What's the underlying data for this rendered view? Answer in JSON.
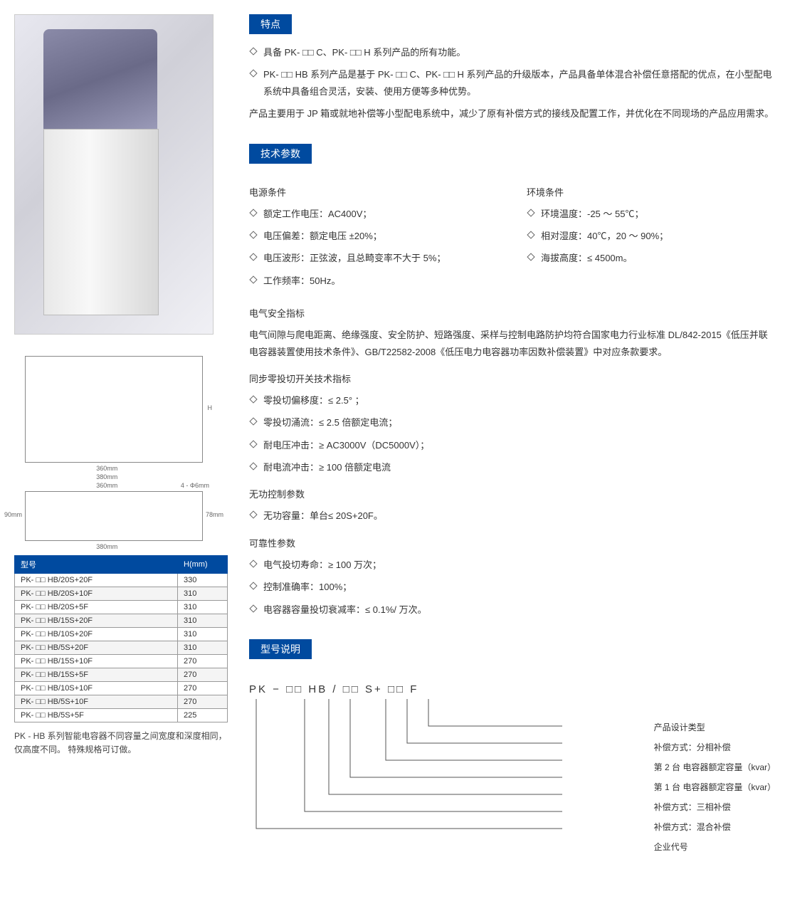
{
  "features": {
    "header": "特点",
    "bullets": [
      "具备 PK- □□ C、PK- □□ H 系列产品的所有功能。",
      "PK- □□ HB 系列产品是基于 PK- □□ C、PK- □□ H 系列产品的升级版本，产品具备单体混合补偿任意搭配的优点，在小型配电系统中具备组合灵活，安装、使用方便等多种优势。"
    ],
    "para": "产品主要用于 JP 箱或就地补偿等小型配电系统中，减少了原有补偿方式的接线及配置工作，并优化在不同现场的产品应用需求。"
  },
  "tech": {
    "header": "技术参数",
    "power": {
      "title": "电源条件",
      "items": [
        "额定工作电压：AC400V；",
        "电压偏差：额定电压 ±20%；",
        "电压波形：正弦波，且总畸变率不大于 5%；",
        "工作频率：50Hz。"
      ]
    },
    "env": {
      "title": "环境条件",
      "items": [
        "环境温度：-25 ～ 55℃；",
        "相对湿度：40℃，20 ～ 90%；",
        "海拔高度：≤ 4500m。"
      ]
    },
    "safety": {
      "title": "电气安全指标",
      "para": "电气间隙与爬电距离、绝缘强度、安全防护、短路强度、采样与控制电路防护均符合国家电力行业标准 DL/842-2015《低压并联电容器装置使用技术条件》、GB/T22582-2008《低压电力电容器功率因数补偿装置》中对应条款要求。"
    },
    "sync": {
      "title": "同步零投切开关技术指标",
      "items": [
        "零投切偏移度：≤ 2.5° ；",
        "零投切涌流：≤ 2.5 倍额定电流；",
        "耐电压冲击：≥ AC3000V（DC5000V）；",
        "耐电流冲击：≥ 100 倍额定电流"
      ]
    },
    "reactive": {
      "title": "无功控制参数",
      "items": [
        "无功容量：单台≤ 20S+20F。"
      ]
    },
    "reliability": {
      "title": "可靠性参数",
      "items": [
        "电气投切寿命：≥ 100 万次；",
        "控制准确率：100%；",
        "电容器容量投切衰减率：≤ 0.1%/ 万次。"
      ]
    }
  },
  "dimensions": {
    "front_w1": "360mm",
    "front_w2": "380mm",
    "front_h": "H",
    "top_w": "360mm",
    "top_outer": "380mm",
    "top_d": "78mm",
    "top_outer_d": "90mm",
    "hole": "4 - Φ6mm"
  },
  "table": {
    "headers": [
      "型号",
      "H(mm)"
    ],
    "rows": [
      [
        "PK- □□ HB/20S+20F",
        "330"
      ],
      [
        "PK- □□ HB/20S+10F",
        "310"
      ],
      [
        "PK- □□ HB/20S+5F",
        "310"
      ],
      [
        "PK- □□ HB/15S+20F",
        "310"
      ],
      [
        "PK- □□ HB/10S+20F",
        "310"
      ],
      [
        "PK- □□ HB/5S+20F",
        "310"
      ],
      [
        "PK- □□ HB/15S+10F",
        "270"
      ],
      [
        "PK- □□ HB/15S+5F",
        "270"
      ],
      [
        "PK- □□ HB/10S+10F",
        "270"
      ],
      [
        "PK- □□ HB/5S+10F",
        "270"
      ],
      [
        "PK- □□ HB/5S+5F",
        "225"
      ]
    ],
    "note": "PK - HB 系列智能电容器不同容量之间宽度和深度相同，仅高度不同。 特殊规格可订做。"
  },
  "model": {
    "header": "型号说明",
    "code_parts": [
      "PK",
      "−",
      "□□",
      "HB",
      "/",
      "□□",
      "S+",
      "□□",
      "F"
    ],
    "labels": [
      "产品设计类型",
      "补偿方式：分相补偿",
      "第 2 台 电容器额定容量（kvar）",
      "第 1 台 电容器额定容量（kvar）",
      "补偿方式：三相补偿",
      "补偿方式：混合补偿",
      "企业代号"
    ]
  },
  "colors": {
    "primary": "#004a9f",
    "text": "#333333",
    "border": "#999999"
  }
}
